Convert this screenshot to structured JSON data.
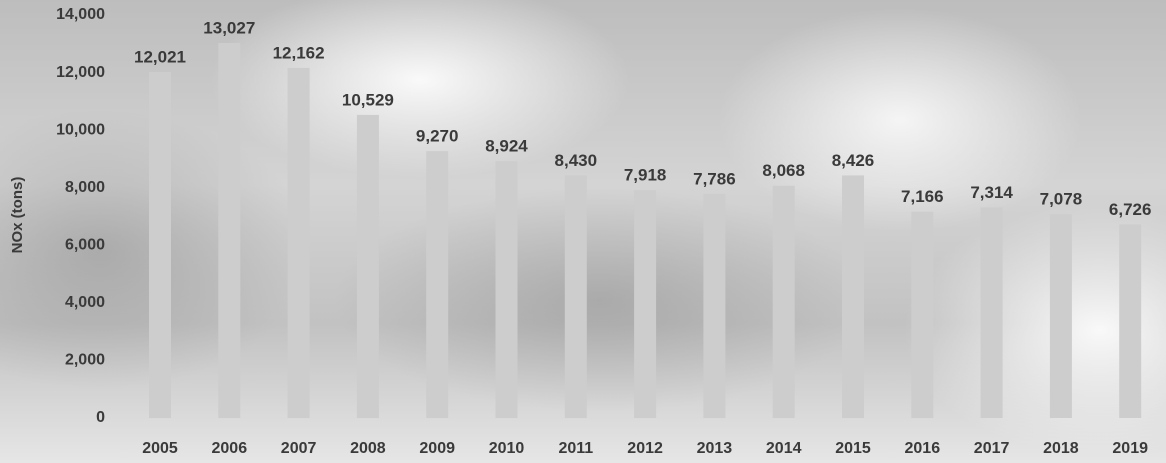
{
  "chart_data": {
    "type": "bar",
    "y_label": "NOx (tons)",
    "categories": [
      "2005",
      "2006",
      "2007",
      "2008",
      "2009",
      "2010",
      "2011",
      "2012",
      "2013",
      "2014",
      "2015",
      "2016",
      "2017",
      "2018",
      "2019"
    ],
    "values": [
      12021,
      13027,
      12162,
      10529,
      9270,
      8924,
      8430,
      7918,
      7786,
      8068,
      8426,
      7166,
      7314,
      7078,
      6726
    ],
    "value_labels": [
      "12,021",
      "13,027",
      "12,162",
      "10,529",
      "9,270",
      "8,924",
      "8,430",
      "7,918",
      "7,786",
      "8,068",
      "8,426",
      "7,166",
      "7,314",
      "7,078",
      "6,726"
    ],
    "color": "#cdcdcd",
    "ylim": [
      0,
      14000
    ],
    "yticks": [
      0,
      {
        "value": 2000,
        "label": "2,000"
      },
      {
        "value": 4000,
        "label": "4,000"
      },
      {
        "value": 6000,
        "label": "6,000"
      },
      {
        "value": 8000,
        "label": "8,000"
      },
      {
        "value": 10000,
        "label": "10,000"
      },
      {
        "value": 12000,
        "label": "12,000"
      },
      {
        "value": 14000,
        "label": "14,000"
      }
    ],
    "grid": false
  }
}
